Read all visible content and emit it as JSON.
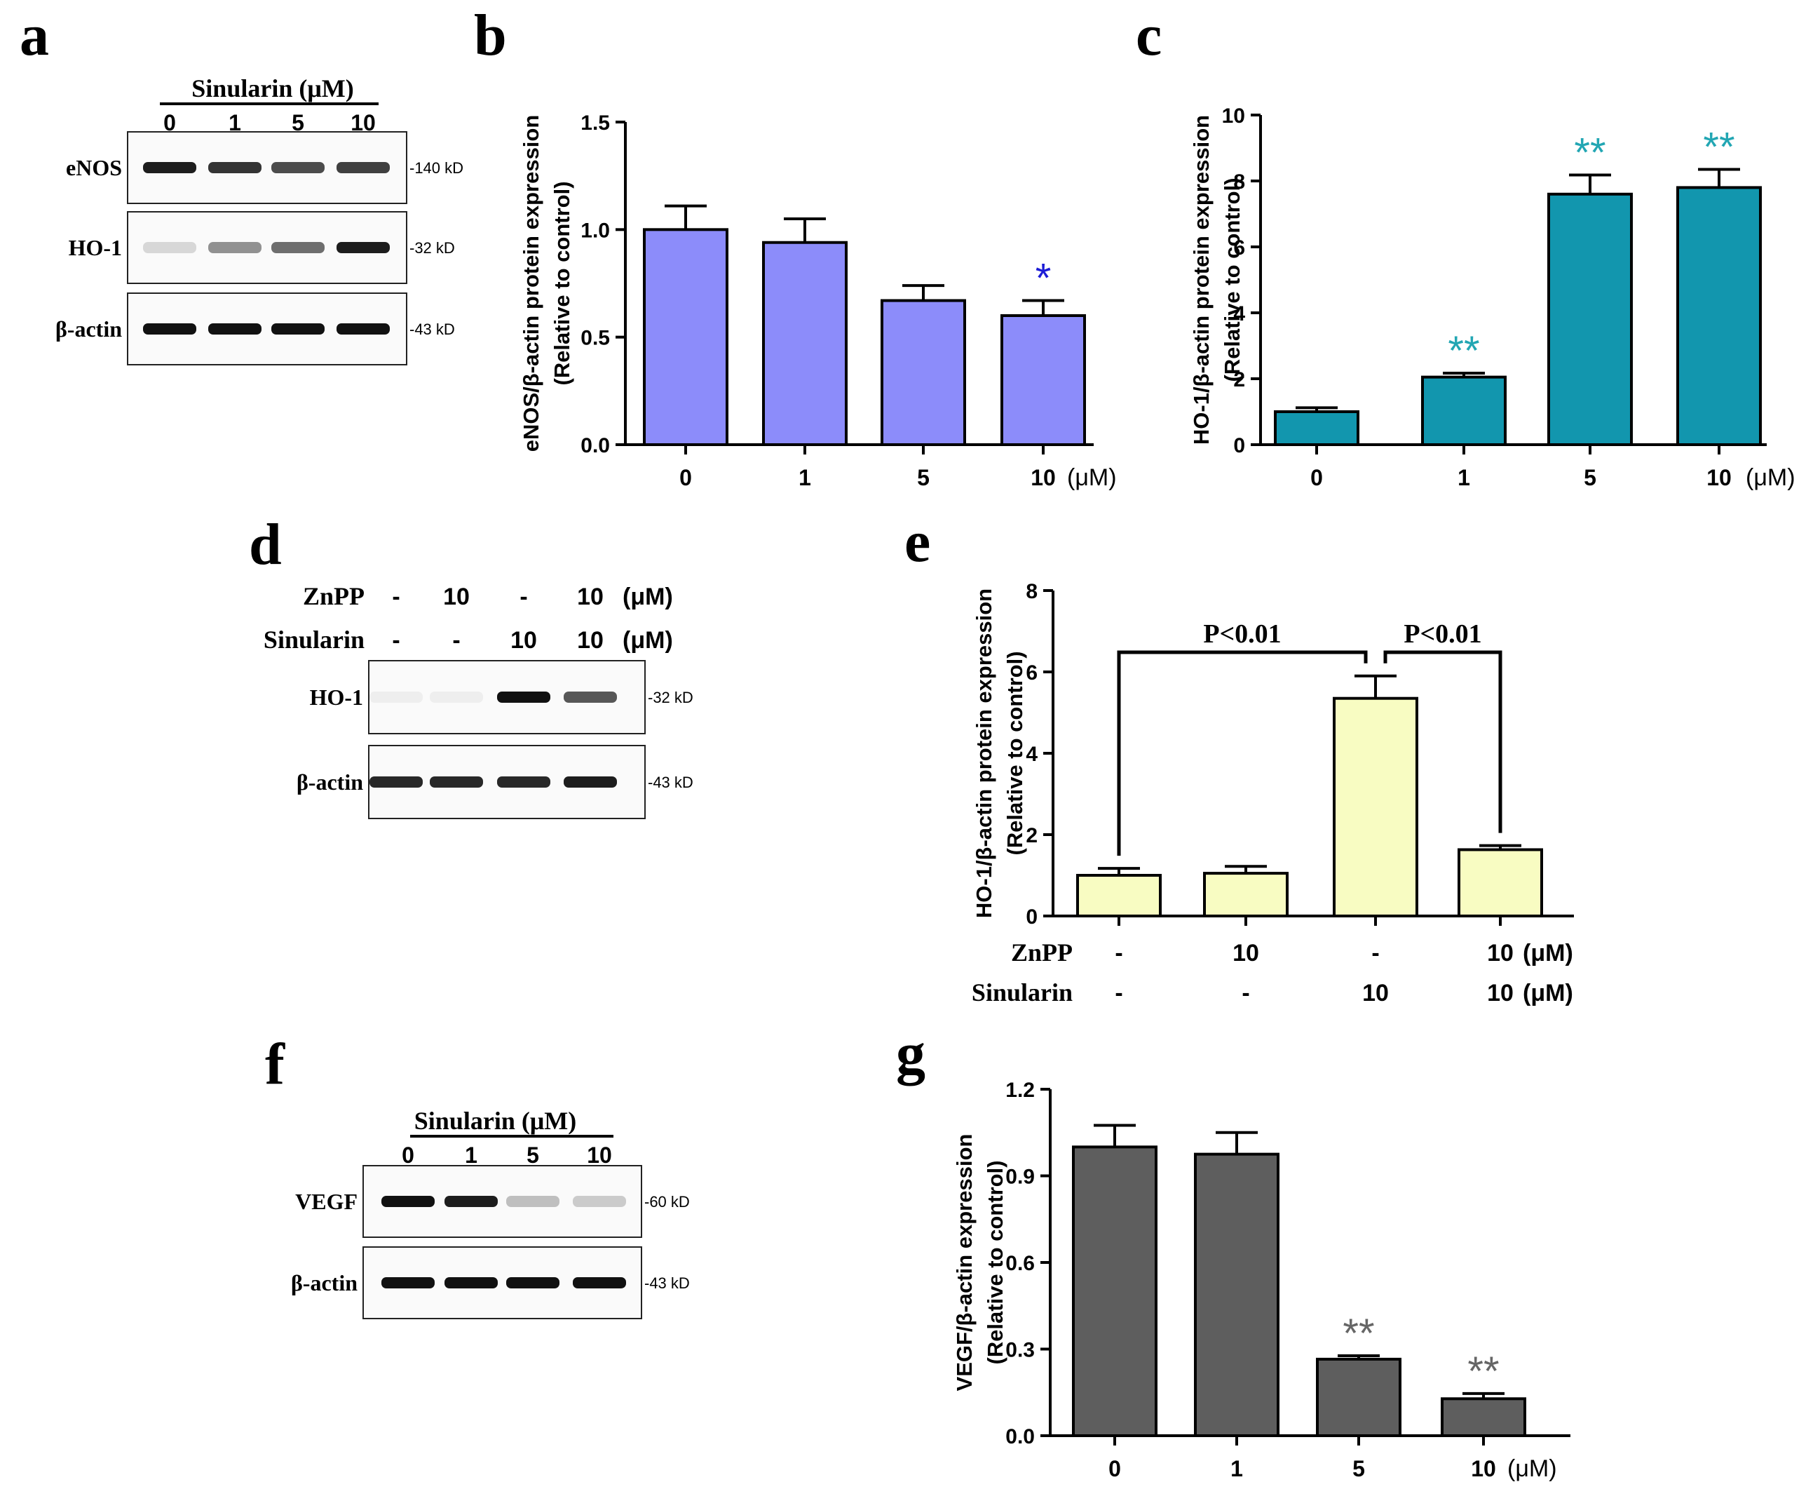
{
  "panel_a": {
    "letter": "a",
    "treatment_label": "Sinularin (μM)",
    "doses": [
      "0",
      "1",
      "5",
      "10"
    ],
    "blots": [
      {
        "label": "eNOS",
        "size": "-140 kD",
        "intensities": [
          0.95,
          0.85,
          0.75,
          0.8
        ]
      },
      {
        "label": "HO-1",
        "size": "-32 kD",
        "intensities": [
          0.15,
          0.45,
          0.6,
          0.95
        ]
      },
      {
        "label": "β-actin",
        "size": "-43 kD",
        "intensities": [
          1.0,
          1.0,
          1.0,
          1.0
        ]
      }
    ]
  },
  "panel_d": {
    "letter": "d",
    "rows": [
      {
        "label": "ZnPP",
        "values": [
          "-",
          "10",
          "-",
          "10"
        ],
        "unit": "(μM)"
      },
      {
        "label": "Sinularin",
        "values": [
          "-",
          "-",
          "10",
          "10"
        ],
        "unit": "(μM)"
      }
    ],
    "blots": [
      {
        "label": "HO-1",
        "size": "-32 kD",
        "intensities": [
          0.05,
          0.05,
          1.0,
          0.7
        ]
      },
      {
        "label": "β-actin",
        "size": "-43 kD",
        "intensities": [
          0.9,
          0.9,
          0.9,
          0.95
        ]
      }
    ]
  },
  "panel_f": {
    "letter": "f",
    "treatment_label": "Sinularin (μM)",
    "doses": [
      "0",
      "1",
      "5",
      "10"
    ],
    "blots": [
      {
        "label": "VEGF",
        "size": "-60 kD",
        "intensities": [
          1.0,
          0.95,
          0.25,
          0.2
        ]
      },
      {
        "label": "β-actin",
        "size": "-43 kD",
        "intensities": [
          1.0,
          1.0,
          1.0,
          1.0
        ]
      }
    ]
  },
  "chart_data": [
    {
      "panel": "b",
      "type": "bar",
      "categories": [
        "0",
        "1",
        "5",
        "10"
      ],
      "values": [
        1.0,
        0.94,
        0.67,
        0.6
      ],
      "errors": [
        0.11,
        0.11,
        0.07,
        0.07
      ],
      "significance": [
        "",
        "",
        "",
        "*"
      ],
      "sig_color": "#1c1cd6",
      "bar_color": "#8c8cfa",
      "ylabel": [
        "eNOS/β-actin protein expression",
        "(Relative to control)"
      ],
      "xunit": "(μM)",
      "ylim": [
        0,
        1.5
      ],
      "yticks": [
        "0.0",
        "0.5",
        "1.0",
        "1.5"
      ]
    },
    {
      "panel": "c",
      "type": "bar",
      "categories": [
        "0",
        "1",
        "5",
        "10"
      ],
      "values": [
        1.0,
        2.05,
        7.6,
        7.8
      ],
      "errors": [
        0.12,
        0.12,
        0.58,
        0.55
      ],
      "significance": [
        "",
        "**",
        "**",
        "**"
      ],
      "sig_color": "#22a6b3",
      "bar_color": "#1296ae",
      "ylabel": [
        "HO-1/β-actin protein expression",
        "(Relative to control)"
      ],
      "xunit": "(μM)",
      "ylim": [
        0,
        10
      ],
      "yticks": [
        "0",
        "2",
        "4",
        "6",
        "8",
        "10"
      ]
    },
    {
      "panel": "e",
      "type": "bar",
      "categories": [
        "ZnPP - / Sinularin -",
        "ZnPP 10 / Sinularin -",
        "ZnPP - / Sinularin 10",
        "ZnPP 10 / Sinularin 10"
      ],
      "row_labels": [
        {
          "label": "ZnPP",
          "values": [
            "-",
            "10",
            "-",
            "10"
          ],
          "unit": "(μM)"
        },
        {
          "label": "Sinularin",
          "values": [
            "-",
            "-",
            "10",
            "10"
          ],
          "unit": "(μM)"
        }
      ],
      "values": [
        1.0,
        1.05,
        5.35,
        1.63
      ],
      "errors": [
        0.17,
        0.17,
        0.55,
        0.1
      ],
      "comparisons": [
        {
          "from": 0,
          "to": 2,
          "label": "P<0.01"
        },
        {
          "from": 2,
          "to": 3,
          "label": "P<0.01"
        }
      ],
      "bar_color": "#f8fcc2",
      "ylabel": [
        "HO-1/β-actin protein expression",
        "(Relative to control)"
      ],
      "ylim": [
        0,
        8
      ],
      "yticks": [
        "0",
        "2",
        "4",
        "6",
        "8"
      ]
    },
    {
      "panel": "g",
      "type": "bar",
      "categories": [
        "0",
        "1",
        "5",
        "10"
      ],
      "values": [
        1.0,
        0.975,
        0.265,
        0.128
      ],
      "errors": [
        0.075,
        0.075,
        0.012,
        0.018
      ],
      "significance": [
        "",
        "",
        "**",
        "**"
      ],
      "sig_color": "#666666",
      "bar_color": "#5e5e5e",
      "ylabel": [
        "VEGF/β-actin expression",
        "(Relative to control)"
      ],
      "xunit": "(μM)",
      "ylim": [
        0,
        1.2
      ],
      "yticks": [
        "0.0",
        "0.3",
        "0.6",
        "0.9",
        "1.2"
      ]
    }
  ]
}
